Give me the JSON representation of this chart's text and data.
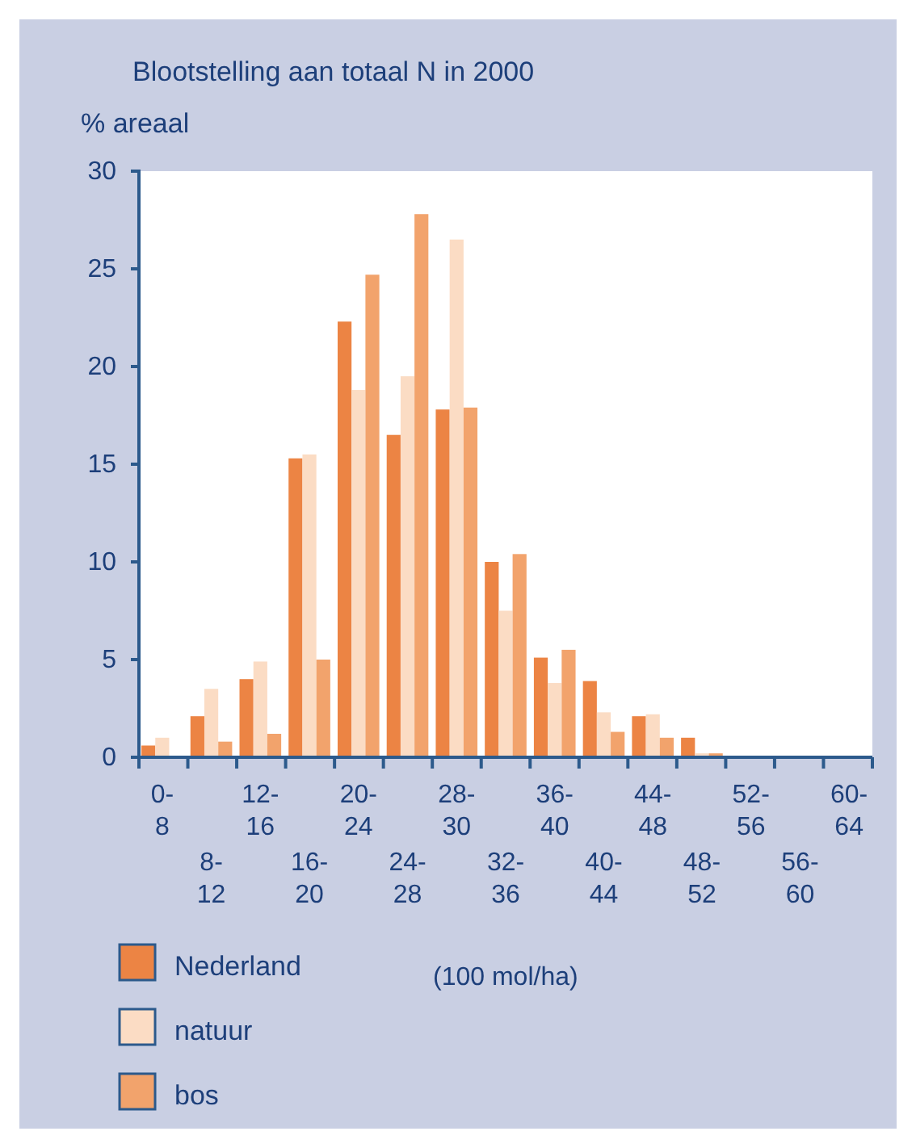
{
  "chart_data": {
    "type": "bar",
    "title": "Blootstelling aan totaal N in 2000",
    "ylabel": "% areaal",
    "xlabel": "(100 mol/ha)",
    "categories": [
      "0-8",
      "8-12",
      "12-16",
      "16-20",
      "20-24",
      "24-28",
      "28-30",
      "32-36",
      "36-40",
      "40-44",
      "44-48",
      "48-52",
      "52-56",
      "56-60",
      "60-64"
    ],
    "series": [
      {
        "name": "Nederland",
        "color": "#ec8444",
        "values": [
          0.6,
          2.1,
          4.0,
          15.3,
          22.3,
          16.5,
          17.8,
          10.0,
          5.1,
          3.9,
          2.1,
          1.0,
          0,
          0,
          0
        ]
      },
      {
        "name": "natuur",
        "color": "#fbdcc4",
        "values": [
          1.0,
          3.5,
          4.9,
          15.5,
          18.8,
          19.5,
          26.5,
          7.5,
          3.8,
          2.3,
          2.2,
          0.2,
          0,
          0,
          0
        ]
      },
      {
        "name": "bos",
        "color": "#f2a36c",
        "values": [
          0,
          0.8,
          1.2,
          5.0,
          24.7,
          27.8,
          17.9,
          10.4,
          5.5,
          1.3,
          1.0,
          0.2,
          0,
          0,
          0
        ]
      }
    ],
    "ylim": [
      0,
      30
    ],
    "yticks": [
      0,
      5,
      10,
      15,
      20,
      25,
      30
    ],
    "grid": false,
    "legend": "bottom"
  }
}
